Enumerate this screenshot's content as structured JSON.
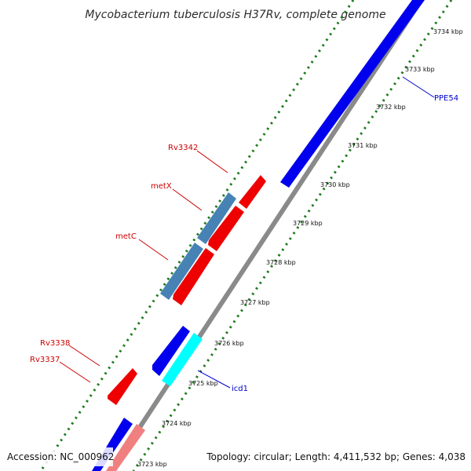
{
  "title": "Mycobacterium tuberculosis H37Rv, complete genome",
  "footer": {
    "accession": "Accession: NC_000962",
    "summary": "Topology: circular; Length: 4,411,532 bp; Genes: 4,038"
  },
  "colors": {
    "backbone": "#8a8a8a",
    "tick": "#1e7a1e",
    "forward_cds": "#0000ee",
    "reverse_cds": "#ee0000",
    "steelblue_feature": "#4682b4",
    "cyan_feature": "#00ffff",
    "pink_feature": "#f08080",
    "label_reverse": "#cc0000",
    "label_forward": "#0000cc"
  },
  "scale_labels": [
    "3723 kbp",
    "3724 kbp",
    "3725 kbp",
    "3726 kbp",
    "3727 kbp",
    "3728 kbp",
    "3729 kbp",
    "3730 kbp",
    "3731 kbp",
    "3732 kbp",
    "3733 kbp",
    "3734 kbp"
  ],
  "gene_labels": {
    "rv3342": "Rv3342",
    "metx": "metX",
    "metc": "metC",
    "rv3338": "Rv3338",
    "rv3337": "Rv3337",
    "ppe54": "PPE54",
    "icd1": "icd1"
  }
}
